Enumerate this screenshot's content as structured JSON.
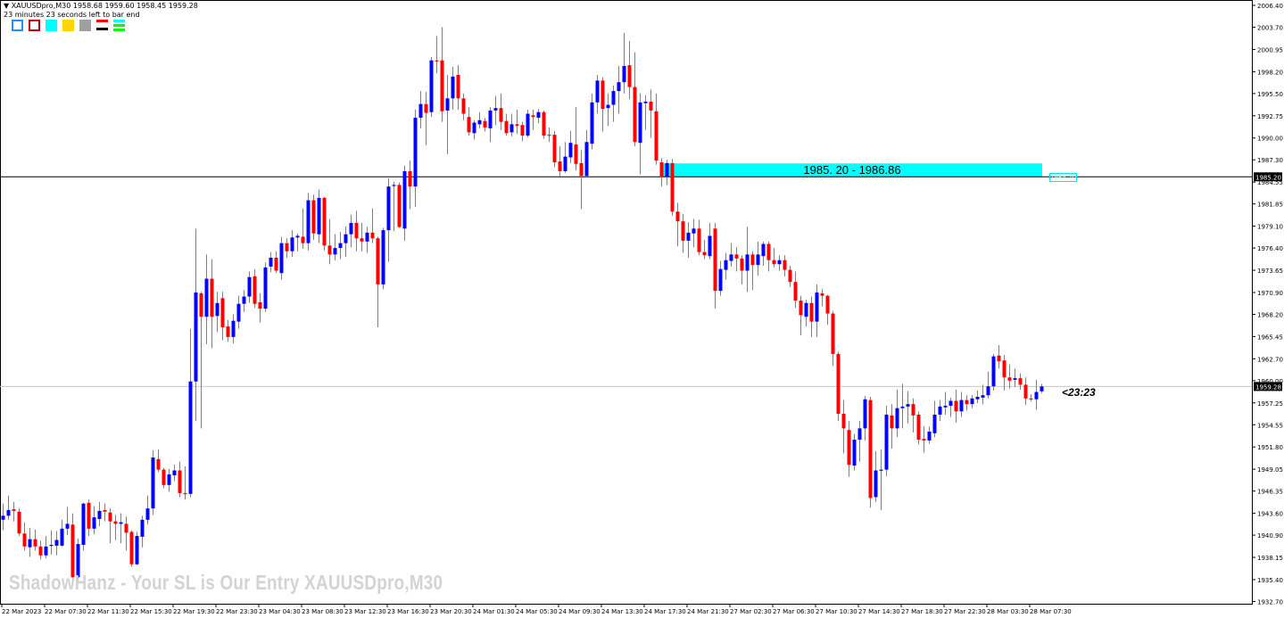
{
  "header": {
    "symbol_line": "XAUUSDpro,M30  1958.68 1959.60 1958.45 1959.28",
    "countdown_text": "23 minutes 23 seconds left to bar end"
  },
  "toolbar": {
    "icons": [
      "blue-rectangle-icon",
      "red-rectangle-icon",
      "cyan-fill-icon",
      "gold-fill-icon",
      "gray-fill-icon",
      "stripes-icon",
      "levels-icon"
    ]
  },
  "zone": {
    "label": "1985. 20 - 1986.86",
    "low": 1985.2,
    "high": 1986.86,
    "color": "#00ffff",
    "mini_label": "1985.20"
  },
  "timer": "<23:23",
  "watermark": "ShadowHanz - Your SL is Our Entry   XAUUSDpro,M30",
  "colors": {
    "bull": "#0000ff",
    "bear": "#ff0000",
    "wick": "#808080",
    "bid_line": "#c8c8c8",
    "level_line": "#000000"
  },
  "chart_data": {
    "type": "candlestick",
    "symbol": "XAUUSDpro",
    "timeframe": "M30",
    "ylim": [
      1932.7,
      2006.4
    ],
    "grid": false,
    "bid": 1959.28,
    "bid_label": "1959.28",
    "level": 1985.2,
    "level_label": "1985.20",
    "y_ticks": [
      "2006.40",
      "2003.70",
      "2000.95",
      "1998.20",
      "1995.50",
      "1992.75",
      "1990.00",
      "1987.30",
      "1984.55",
      "1981.85",
      "1979.10",
      "1976.40",
      "1973.65",
      "1970.90",
      "1968.20",
      "1965.45",
      "1962.70",
      "1960.00",
      "1957.25",
      "1954.55",
      "1951.80",
      "1949.05",
      "1946.35",
      "1943.60",
      "1940.90",
      "1938.15",
      "1935.40",
      "1932.70"
    ],
    "x_ticks": [
      "22 Mar 2023",
      "22 Mar 07:30",
      "22 Mar 11:30",
      "22 Mar 15:30",
      "22 Mar 19:30",
      "22 Mar 23:30",
      "23 Mar 04:30",
      "23 Mar 08:30",
      "23 Mar 12:30",
      "23 Mar 16:30",
      "23 Mar 20:30",
      "24 Mar 01:30",
      "24 Mar 05:30",
      "24 Mar 09:30",
      "24 Mar 13:30",
      "24 Mar 17:30",
      "24 Mar 21:30",
      "27 Mar 02:30",
      "27 Mar 06:30",
      "27 Mar 10:30",
      "27 Mar 14:30",
      "27 Mar 18:30",
      "27 Mar 22:30",
      "28 Mar 03:30",
      "28 Mar 07:30"
    ],
    "ohlc": [
      [
        1942.8,
        1944.8,
        1941.5,
        1943.3
      ],
      [
        1943.3,
        1945.8,
        1942.8,
        1944.0
      ],
      [
        1944.1,
        1945.0,
        1942.6,
        1943.9
      ],
      [
        1943.8,
        1944.2,
        1940.8,
        1941.1
      ],
      [
        1941.1,
        1942.5,
        1939.0,
        1939.5
      ],
      [
        1939.4,
        1941.8,
        1938.2,
        1940.4
      ],
      [
        1940.4,
        1941.6,
        1939.0,
        1939.5
      ],
      [
        1939.5,
        1940.2,
        1937.9,
        1938.4
      ],
      [
        1938.4,
        1940.8,
        1938.0,
        1939.5
      ],
      [
        1939.6,
        1941.5,
        1938.5,
        1939.7
      ],
      [
        1939.6,
        1941.4,
        1938.4,
        1940.3
      ],
      [
        1939.6,
        1942.8,
        1939.5,
        1941.7
      ],
      [
        1941.7,
        1944.4,
        1940.9,
        1942.3
      ],
      [
        1942.2,
        1943.6,
        1935.4,
        1935.7
      ],
      [
        1935.7,
        1940.5,
        1935.2,
        1939.8
      ],
      [
        1939.7,
        1944.9,
        1939.0,
        1944.8
      ],
      [
        1944.9,
        1945.3,
        1940.8,
        1941.7
      ],
      [
        1941.7,
        1944.5,
        1941.0,
        1943.1
      ],
      [
        1942.9,
        1945.0,
        1942.0,
        1943.9
      ],
      [
        1944.0,
        1944.8,
        1942.6,
        1943.8
      ],
      [
        1943.7,
        1944.2,
        1939.9,
        1942.6
      ],
      [
        1942.6,
        1943.4,
        1940.3,
        1942.3
      ],
      [
        1942.3,
        1943.6,
        1939.9,
        1942.5
      ],
      [
        1942.3,
        1943.2,
        1939.0,
        1941.2
      ],
      [
        1941.3,
        1941.5,
        1937.0,
        1937.3
      ],
      [
        1937.3,
        1941.3,
        1937.2,
        1940.8
      ],
      [
        1940.7,
        1943.3,
        1939.4,
        1942.8
      ],
      [
        1942.8,
        1945.8,
        1942.2,
        1944.2
      ],
      [
        1944.2,
        1951.4,
        1943.4,
        1950.5
      ],
      [
        1950.3,
        1951.5,
        1948.7,
        1949.0
      ],
      [
        1949.0,
        1949.2,
        1946.7,
        1947.1
      ],
      [
        1947.1,
        1949.1,
        1946.3,
        1948.4
      ],
      [
        1948.3,
        1949.6,
        1947.6,
        1948.9
      ],
      [
        1948.9,
        1950.0,
        1945.6,
        1946.1
      ],
      [
        1946.1,
        1949.4,
        1945.3,
        1946.0
      ],
      [
        1946.0,
        1966.4,
        1945.6,
        1959.9
      ],
      [
        1959.9,
        1978.8,
        1955.0,
        1970.9
      ],
      [
        1970.8,
        1971.0,
        1954.1,
        1967.9
      ],
      [
        1967.9,
        1975.6,
        1964.5,
        1972.6
      ],
      [
        1972.6,
        1975.0,
        1964.0,
        1967.9
      ],
      [
        1968.0,
        1971.0,
        1966.0,
        1969.6
      ],
      [
        1970.2,
        1971.0,
        1965.0,
        1966.6
      ],
      [
        1966.7,
        1967.5,
        1964.8,
        1965.4
      ],
      [
        1965.4,
        1968.2,
        1964.6,
        1967.4
      ],
      [
        1967.3,
        1970.5,
        1966.4,
        1969.5
      ],
      [
        1969.5,
        1971.2,
        1968.5,
        1970.4
      ],
      [
        1970.4,
        1973.5,
        1969.6,
        1972.8
      ],
      [
        1972.9,
        1973.8,
        1969.0,
        1969.5
      ],
      [
        1969.7,
        1970.8,
        1967.2,
        1968.9
      ],
      [
        1968.9,
        1974.6,
        1968.5,
        1974.0
      ],
      [
        1974.1,
        1975.9,
        1973.4,
        1975.2
      ],
      [
        1975.2,
        1976.0,
        1973.3,
        1973.6
      ],
      [
        1973.3,
        1977.8,
        1972.5,
        1977.0
      ],
      [
        1977.0,
        1977.6,
        1975.2,
        1976.0
      ],
      [
        1976.0,
        1978.6,
        1975.3,
        1977.7
      ],
      [
        1977.7,
        1978.2,
        1976.0,
        1977.9
      ],
      [
        1977.8,
        1981.3,
        1976.3,
        1977.0
      ],
      [
        1977.0,
        1983.2,
        1976.1,
        1982.3
      ],
      [
        1982.3,
        1983.0,
        1977.4,
        1978.2
      ],
      [
        1978.1,
        1983.6,
        1977.0,
        1982.6
      ],
      [
        1982.6,
        1982.7,
        1976.1,
        1976.7
      ],
      [
        1976.7,
        1980.0,
        1974.4,
        1975.6
      ],
      [
        1975.6,
        1978.1,
        1974.9,
        1976.4
      ],
      [
        1976.4,
        1978.4,
        1975.0,
        1977.0
      ],
      [
        1977.0,
        1979.1,
        1975.3,
        1978.1
      ],
      [
        1978.1,
        1980.5,
        1976.5,
        1979.5
      ],
      [
        1979.5,
        1981.0,
        1976.0,
        1977.6
      ],
      [
        1977.6,
        1979.5,
        1976.0,
        1977.2
      ],
      [
        1977.2,
        1979.0,
        1975.8,
        1978.3
      ],
      [
        1978.3,
        1981.3,
        1977.0,
        1977.6
      ],
      [
        1977.6,
        1977.8,
        1966.6,
        1971.9
      ],
      [
        1971.9,
        1978.9,
        1971.3,
        1978.6
      ],
      [
        1978.6,
        1985.0,
        1974.7,
        1984.0
      ],
      [
        1984.1,
        1984.6,
        1978.5,
        1984.2
      ],
      [
        1984.2,
        1984.5,
        1978.9,
        1979.0
      ],
      [
        1978.8,
        1986.6,
        1977.3,
        1985.9
      ],
      [
        1985.9,
        1987.2,
        1981.2,
        1984.0
      ],
      [
        1984.0,
        1993.5,
        1981.5,
        1992.5
      ],
      [
        1992.5,
        1995.8,
        1991.2,
        1994.2
      ],
      [
        1994.2,
        1995.7,
        1989.1,
        1993.1
      ],
      [
        1993.2,
        2000.0,
        1992.6,
        1999.6
      ],
      [
        1999.6,
        2002.6,
        1998.0,
        1999.5
      ],
      [
        1999.6,
        2003.7,
        1992.0,
        1993.3
      ],
      [
        1993.4,
        1997.8,
        1988.0,
        1994.9
      ],
      [
        1994.9,
        1998.8,
        1993.5,
        1997.6
      ],
      [
        1997.8,
        1999.0,
        1993.5,
        1994.9
      ],
      [
        1994.9,
        1995.5,
        1992.2,
        1993.0
      ],
      [
        1992.6,
        1993.8,
        1990.3,
        1990.7
      ],
      [
        1990.6,
        1992.2,
        1989.8,
        1991.9
      ],
      [
        1991.7,
        1993.2,
        1991.2,
        1992.2
      ],
      [
        1992.1,
        1992.5,
        1990.8,
        1991.3
      ],
      [
        1991.2,
        1993.8,
        1989.5,
        1993.4
      ],
      [
        1993.4,
        1995.2,
        1991.6,
        1993.7
      ],
      [
        1993.7,
        1995.5,
        1991.0,
        1992.0
      ],
      [
        1992.1,
        1993.0,
        1990.3,
        1990.6
      ],
      [
        1990.7,
        1993.0,
        1990.2,
        1991.7
      ],
      [
        1991.7,
        1993.5,
        1990.5,
        1991.5
      ],
      [
        1991.6,
        1992.0,
        1989.6,
        1990.3
      ],
      [
        1990.3,
        1993.5,
        1990.1,
        1993.0
      ],
      [
        1992.8,
        1993.5,
        1991.0,
        1992.6
      ],
      [
        1992.5,
        1993.6,
        1991.8,
        1993.2
      ],
      [
        1993.2,
        1993.4,
        1989.9,
        1990.3
      ],
      [
        1990.4,
        1991.3,
        1989.5,
        1990.3
      ],
      [
        1990.4,
        1990.9,
        1986.4,
        1987.0
      ],
      [
        1987.1,
        1989.0,
        1985.3,
        1985.9
      ],
      [
        1985.9,
        1989.5,
        1985.7,
        1987.7
      ],
      [
        1987.6,
        1990.9,
        1986.9,
        1989.4
      ],
      [
        1989.2,
        1993.8,
        1986.0,
        1986.8
      ],
      [
        1986.9,
        1988.5,
        1981.2,
        1985.3
      ],
      [
        1985.3,
        1991.0,
        1985.2,
        1989.5
      ],
      [
        1989.3,
        1995.5,
        1988.6,
        1994.4
      ],
      [
        1994.4,
        1997.8,
        1993.0,
        1997.1
      ],
      [
        1997.1,
        1997.5,
        1990.8,
        1993.6
      ],
      [
        1993.7,
        1995.5,
        1991.5,
        1994.1
      ],
      [
        1994.1,
        1996.5,
        1992.0,
        1995.8
      ],
      [
        1995.8,
        1998.9,
        1993.0,
        1996.9
      ],
      [
        1996.9,
        2003.0,
        1995.5,
        1998.9
      ],
      [
        1999.0,
        2002.0,
        1994.8,
        1996.3
      ],
      [
        1996.3,
        2000.6,
        1989.0,
        1989.5
      ],
      [
        1989.4,
        1995.5,
        1985.5,
        1994.4
      ],
      [
        1994.3,
        1995.3,
        1991.0,
        1994.5
      ],
      [
        1994.5,
        1996.0,
        1990.0,
        1993.4
      ],
      [
        1993.3,
        1995.5,
        1986.7,
        1987.2
      ],
      [
        1987.0,
        1987.5,
        1984.0,
        1985.2
      ],
      [
        1985.2,
        1987.3,
        1984.2,
        1986.9
      ],
      [
        1986.9,
        1987.4,
        1980.4,
        1980.9
      ],
      [
        1980.9,
        1982.0,
        1976.6,
        1979.7
      ],
      [
        1979.7,
        1980.6,
        1975.8,
        1977.3
      ],
      [
        1977.3,
        1979.6,
        1975.2,
        1978.3
      ],
      [
        1978.2,
        1980.0,
        1976.5,
        1978.8
      ],
      [
        1978.8,
        1979.9,
        1975.5,
        1975.9
      ],
      [
        1975.9,
        1977.4,
        1975.0,
        1975.5
      ],
      [
        1975.4,
        1979.5,
        1975.0,
        1977.9
      ],
      [
        1978.8,
        1979.5,
        1968.9,
        1971.1
      ],
      [
        1971.1,
        1974.8,
        1970.5,
        1973.8
      ],
      [
        1973.7,
        1975.8,
        1972.5,
        1974.9
      ],
      [
        1974.8,
        1977.0,
        1974.1,
        1975.6
      ],
      [
        1975.6,
        1976.5,
        1973.5,
        1975.1
      ],
      [
        1975.1,
        1975.5,
        1971.9,
        1973.6
      ],
      [
        1973.6,
        1979.0,
        1971.0,
        1975.6
      ],
      [
        1975.6,
        1976.0,
        1971.2,
        1974.3
      ],
      [
        1974.3,
        1977.2,
        1973.0,
        1975.6
      ],
      [
        1975.4,
        1977.2,
        1974.2,
        1976.9
      ],
      [
        1976.9,
        1977.2,
        1973.5,
        1974.9
      ],
      [
        1974.9,
        1976.4,
        1974.0,
        1974.4
      ],
      [
        1974.4,
        1975.5,
        1973.6,
        1974.9
      ],
      [
        1974.9,
        1975.5,
        1972.9,
        1973.7
      ],
      [
        1973.7,
        1974.2,
        1971.6,
        1972.2
      ],
      [
        1972.2,
        1973.5,
        1969.0,
        1969.9
      ],
      [
        1969.9,
        1970.5,
        1965.6,
        1968.1
      ],
      [
        1967.9,
        1970.0,
        1966.7,
        1969.6
      ],
      [
        1969.6,
        1970.4,
        1965.4,
        1967.3
      ],
      [
        1967.3,
        1971.9,
        1965.4,
        1970.9
      ],
      [
        1970.8,
        1971.3,
        1969.2,
        1970.5
      ],
      [
        1970.5,
        1970.6,
        1966.9,
        1968.3
      ],
      [
        1968.3,
        1968.6,
        1961.8,
        1963.3
      ],
      [
        1963.3,
        1963.6,
        1955.0,
        1955.9
      ],
      [
        1955.9,
        1957.6,
        1951.0,
        1954.1
      ],
      [
        1953.9,
        1955.0,
        1948.1,
        1949.6
      ],
      [
        1949.5,
        1953.4,
        1948.9,
        1952.7
      ],
      [
        1952.7,
        1955.0,
        1950.0,
        1954.1
      ],
      [
        1954.1,
        1958.1,
        1952.6,
        1957.7
      ],
      [
        1957.6,
        1958.0,
        1944.3,
        1945.5
      ],
      [
        1945.6,
        1951.3,
        1945.0,
        1948.9
      ],
      [
        1948.9,
        1951.5,
        1944.0,
        1949.0
      ],
      [
        1949.0,
        1956.9,
        1948.2,
        1955.8
      ],
      [
        1955.7,
        1957.1,
        1951.6,
        1954.1
      ],
      [
        1954.1,
        1958.9,
        1953.0,
        1956.6
      ],
      [
        1956.6,
        1959.6,
        1954.1,
        1956.8
      ],
      [
        1956.8,
        1958.7,
        1954.7,
        1957.1
      ],
      [
        1957.1,
        1957.8,
        1953.6,
        1955.7
      ],
      [
        1955.8,
        1956.2,
        1952.1,
        1952.7
      ],
      [
        1952.8,
        1954.4,
        1951.1,
        1952.6
      ],
      [
        1952.6,
        1954.3,
        1952.2,
        1953.7
      ],
      [
        1953.5,
        1957.5,
        1953.0,
        1955.8
      ],
      [
        1955.8,
        1957.6,
        1955.0,
        1956.8
      ],
      [
        1956.7,
        1958.6,
        1955.8,
        1956.9
      ],
      [
        1956.9,
        1957.9,
        1955.5,
        1957.5
      ],
      [
        1957.5,
        1958.9,
        1954.8,
        1956.2
      ],
      [
        1956.2,
        1958.6,
        1955.5,
        1957.6
      ],
      [
        1957.6,
        1958.2,
        1956.3,
        1957.1
      ],
      [
        1957.1,
        1958.2,
        1956.6,
        1957.8
      ],
      [
        1957.7,
        1958.8,
        1957.2,
        1958.0
      ],
      [
        1957.9,
        1959.5,
        1957.1,
        1958.2
      ],
      [
        1958.2,
        1961.1,
        1957.8,
        1959.3
      ],
      [
        1959.3,
        1963.3,
        1958.8,
        1963.0
      ],
      [
        1963.1,
        1964.4,
        1961.5,
        1962.4
      ],
      [
        1962.5,
        1963.2,
        1958.8,
        1960.4
      ],
      [
        1960.4,
        1962.0,
        1959.0,
        1960.0
      ],
      [
        1960.1,
        1961.5,
        1959.2,
        1960.3
      ],
      [
        1960.3,
        1960.9,
        1958.9,
        1959.5
      ],
      [
        1959.5,
        1960.4,
        1957.0,
        1957.8
      ],
      [
        1957.8,
        1958.3,
        1957.4,
        1957.7
      ],
      [
        1957.7,
        1960.1,
        1956.4,
        1958.6
      ],
      [
        1958.68,
        1959.6,
        1958.45,
        1959.28
      ]
    ]
  }
}
